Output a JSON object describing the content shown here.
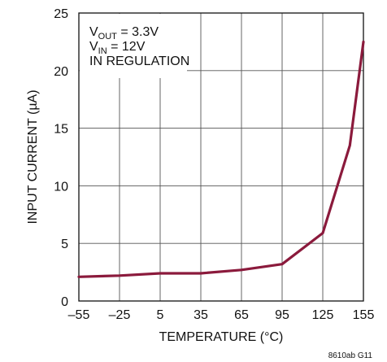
{
  "chart_data": {
    "type": "line",
    "title": "",
    "xlabel": "TEMPERATURE (°C)",
    "ylabel": "INPUT CURRENT (µA)",
    "xlim": [
      -55,
      155
    ],
    "ylim": [
      0,
      25
    ],
    "x_ticks": [
      -55,
      -25,
      5,
      35,
      65,
      95,
      125,
      155
    ],
    "x_tick_labels": [
      "–55",
      "–25",
      "5",
      "35",
      "65",
      "95",
      "125",
      "155"
    ],
    "y_ticks": [
      0,
      5,
      10,
      15,
      20,
      25
    ],
    "y_tick_labels": [
      "0",
      "5",
      "10",
      "15",
      "20",
      "25"
    ],
    "grid": true,
    "series": [
      {
        "color": "#8b1a3c",
        "x": [
          -55,
          -25,
          5,
          35,
          65,
          95,
          125,
          145,
          155
        ],
        "y": [
          2.1,
          2.2,
          2.4,
          2.4,
          2.7,
          3.2,
          5.9,
          13.5,
          22.5
        ]
      }
    ],
    "annotations": [
      {
        "main": "V",
        "sub": "OUT",
        "rest": " = 3.3V"
      },
      {
        "main": "V",
        "sub": "IN",
        "rest": " = 12V"
      },
      {
        "main": "IN REGULATION",
        "sub": "",
        "rest": ""
      }
    ],
    "figure_code": "8610ab G11"
  }
}
